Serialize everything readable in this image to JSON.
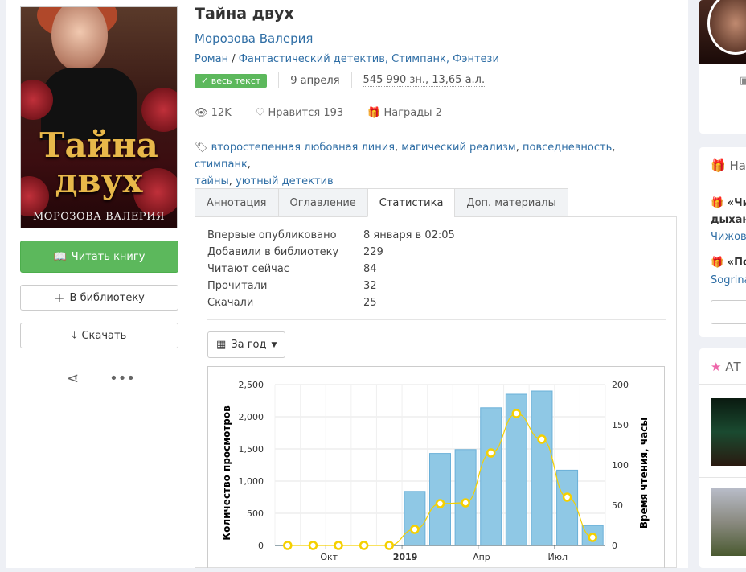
{
  "book": {
    "title": "Тайна двух",
    "author": "Морозова Валерия",
    "genre_root": "Роман",
    "genres": "Фантастический детектив, Стимпанк, Фэнтези",
    "status_badge": "весь текст",
    "date": "9 апреля",
    "size": "545 990 зн., 13,65 а.л.",
    "cover_title": "Тайна двух",
    "cover_author": "МОРОЗОВА ВАЛЕРИЯ"
  },
  "stats": {
    "views": "12K",
    "likes_label": "Нравится",
    "likes": "193",
    "awards_label": "Награды",
    "awards": "2"
  },
  "tags": [
    "второстепенная любовная линия",
    "магический реализм",
    "повседневность",
    "стимпанк",
    "тайны",
    "уютный детектив"
  ],
  "actions": {
    "read": "Читать книгу",
    "library": "В библиотеку",
    "download": "Скачать"
  },
  "tabs": [
    {
      "label": "Аннотация"
    },
    {
      "label": "Оглавление"
    },
    {
      "label": "Статистика",
      "active": true
    },
    {
      "label": "Доп. материалы"
    }
  ],
  "statistics": [
    {
      "label": "Впервые опубликовано",
      "value": "8 января в 02:05"
    },
    {
      "label": "Добавили в библиотеку",
      "value": "229"
    },
    {
      "label": "Читают сейчас",
      "value": "84"
    },
    {
      "label": "Прочитали",
      "value": "32"
    },
    {
      "label": "Скачали",
      "value": "25"
    }
  ],
  "period": "За год",
  "sidebar": {
    "awards_title": "На",
    "award1_a": "«Чи",
    "award1_b": "дыхан",
    "award1_author": "Чижова",
    "award2_a": "«По",
    "award2_author": "Sogrina",
    "at_title": "АТ"
  },
  "chart_data": {
    "type": "bar+line",
    "ylabel": "Количество просмотров",
    "y2label": "Время чтения, часы",
    "ylim": [
      0,
      2500
    ],
    "y2lim": [
      0,
      200
    ],
    "yticks": [
      "0",
      "500",
      "1,000",
      "1,500",
      "2,000",
      "2,500"
    ],
    "y2ticks": [
      "0",
      "50",
      "100",
      "150",
      "200"
    ],
    "xticks": [
      {
        "label": "Окт",
        "pos": 2
      },
      {
        "label": "2019",
        "pos": 5,
        "bold": true
      },
      {
        "label": "Апр",
        "pos": 8
      },
      {
        "label": "Июл",
        "pos": 11
      }
    ],
    "series": [
      {
        "type": "bar",
        "values": [
          0,
          0,
          0,
          0,
          0,
          840,
          1430,
          1490,
          2140,
          2350,
          2400,
          1170,
          310
        ],
        "color": "#8fc8e5"
      },
      {
        "type": "line",
        "values": [
          0,
          0,
          0,
          0,
          0,
          20,
          52,
          53,
          115,
          164,
          132,
          60,
          10
        ],
        "color": "#f5d000"
      }
    ],
    "grid": true
  }
}
